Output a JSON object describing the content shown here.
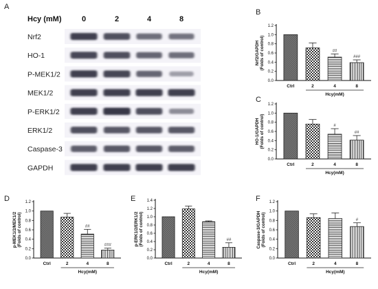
{
  "colors": {
    "blot_background": "#f4f3f8",
    "blot_band": "#2b2a3a",
    "axis": "#111111"
  },
  "blot": {
    "panel_letter": "A",
    "header_label": "Hcy (mM)",
    "lanes": [
      "0",
      "2",
      "4",
      "8"
    ],
    "proteins": [
      {
        "label": "Nrf2",
        "intensity": [
          0.85,
          0.75,
          0.55,
          0.5
        ]
      },
      {
        "label": "HO-1",
        "intensity": [
          0.8,
          0.75,
          0.6,
          0.55
        ]
      },
      {
        "label": "P-MEK1/2",
        "intensity": [
          0.85,
          0.82,
          0.6,
          0.22
        ]
      },
      {
        "label": "MEK1/2",
        "intensity": [
          0.85,
          0.85,
          0.85,
          0.85
        ]
      },
      {
        "label": "P-ERK1/2",
        "intensity": [
          0.85,
          0.9,
          0.75,
          0.35
        ]
      },
      {
        "label": "ERK1/2",
        "intensity": [
          0.75,
          0.7,
          0.7,
          0.7
        ]
      },
      {
        "label": "Caspase-3",
        "intensity": [
          0.65,
          0.7,
          0.7,
          0.65
        ]
      },
      {
        "label": "GAPDH",
        "intensity": [
          0.85,
          0.85,
          0.85,
          0.85
        ]
      }
    ]
  },
  "chart_data": [
    {
      "panel": "B",
      "type": "bar",
      "ylabel": "Nrf2/GAPDH",
      "ylabel2": "(Folds of control)",
      "categories": [
        "Ctrl",
        "2",
        "4",
        "8"
      ],
      "values": [
        1.0,
        0.71,
        0.51,
        0.39
      ],
      "errors": [
        0.0,
        0.11,
        0.07,
        0.06
      ],
      "significance": [
        "",
        "",
        "##",
        "###"
      ],
      "xgroup_label": "Hcy(mM)",
      "ylim": [
        0,
        1.2
      ],
      "yticks": [
        "0.0",
        "0.2",
        "0.4",
        "0.6",
        "0.8",
        "1.0",
        "1.2"
      ]
    },
    {
      "panel": "C",
      "type": "bar",
      "ylabel": "HO-1/GAPDH",
      "ylabel2": "(Folds of control)",
      "categories": [
        "Ctrl",
        "2",
        "4",
        "8"
      ],
      "values": [
        1.0,
        0.76,
        0.54,
        0.41
      ],
      "errors": [
        0.0,
        0.1,
        0.12,
        0.1
      ],
      "significance": [
        "",
        "",
        "#",
        "##"
      ],
      "xgroup_label": "Hcy(mM)",
      "ylim": [
        0,
        1.2
      ],
      "yticks": [
        "0.0",
        "0.2",
        "0.4",
        "0.6",
        "0.8",
        "1.0",
        "1.2"
      ]
    },
    {
      "panel": "D",
      "type": "bar",
      "ylabel": "p-MEK1/2/MEK1/2",
      "ylabel2": "(Folds of control)",
      "categories": [
        "Ctrl",
        "2",
        "4",
        "8"
      ],
      "values": [
        1.0,
        0.87,
        0.51,
        0.17
      ],
      "errors": [
        0.0,
        0.08,
        0.1,
        0.04
      ],
      "significance": [
        "",
        "",
        "##",
        "###"
      ],
      "xgroup_label": "Hcy(mM)",
      "ylim": [
        0,
        1.2
      ],
      "yticks": [
        "0.0",
        "0.2",
        "0.4",
        "0.6",
        "0.8",
        "1.0",
        "1.2"
      ]
    },
    {
      "panel": "E",
      "type": "bar",
      "ylabel": "p-ERK1/2/ERK1/2",
      "ylabel2": "(Folds of control)",
      "categories": [
        "Ctrl",
        "2",
        "4",
        "8"
      ],
      "values": [
        1.0,
        1.19,
        0.88,
        0.26
      ],
      "errors": [
        0.0,
        0.07,
        0.02,
        0.11
      ],
      "significance": [
        "",
        "",
        "",
        "##"
      ],
      "xgroup_label": "Hcy(mM)",
      "ylim": [
        0,
        1.4
      ],
      "yticks": [
        "0.0",
        "0.2",
        "0.4",
        "0.6",
        "0.8",
        "1.0",
        "1.2",
        "1.4"
      ]
    },
    {
      "panel": "F",
      "type": "bar",
      "ylabel": "Caspase-3/GAPDH",
      "ylabel2": "(Folds of control)",
      "categories": [
        "Ctrl",
        "2",
        "4",
        "8"
      ],
      "values": [
        1.0,
        0.86,
        0.84,
        0.67
      ],
      "errors": [
        0.0,
        0.08,
        0.12,
        0.08
      ],
      "significance": [
        "",
        "",
        "",
        "#"
      ],
      "xgroup_label": "Hcy(mM)",
      "ylim": [
        0,
        1.2
      ],
      "yticks": [
        "0.0",
        "0.2",
        "0.4",
        "0.6",
        "0.8",
        "1.0",
        "1.2"
      ]
    }
  ]
}
